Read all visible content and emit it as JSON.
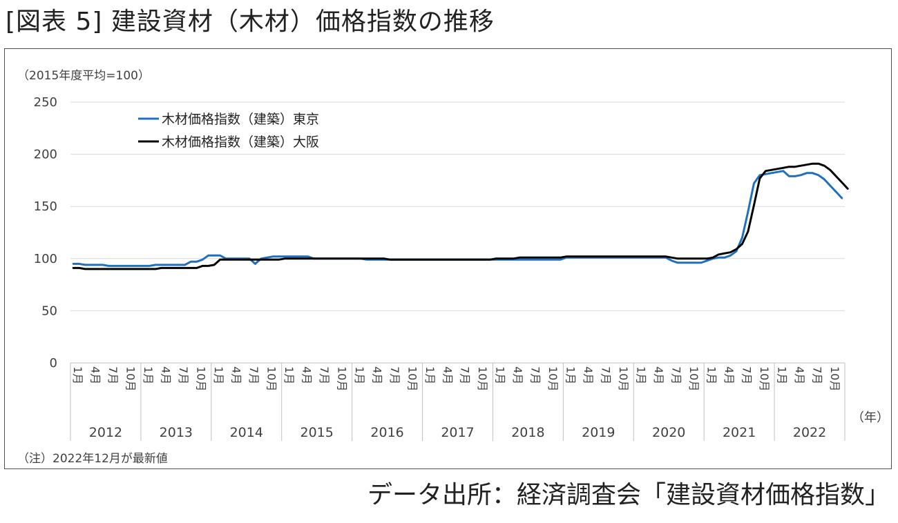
{
  "title": "[図表 5] 建設資材（木材）価格指数の推移",
  "source": "データ出所：経済調査会「建設資材価格指数」",
  "note": "（注）2022年12月が最新値",
  "colors": {
    "tokyo": "#1f6fbf",
    "osaka": "#000000",
    "grid": "#d9d9d9",
    "axis": "#bfbfbf"
  },
  "chart_data": {
    "type": "line",
    "ylabel": "（2015年度平均=100）",
    "xunit": "（年）",
    "ylim": [
      0,
      250
    ],
    "yticks": [
      0,
      50,
      100,
      150,
      200,
      250
    ],
    "month_labels": [
      "1月",
      "4月",
      "7月",
      "10月"
    ],
    "years": [
      "2012",
      "2013",
      "2014",
      "2015",
      "2016",
      "2017",
      "2018",
      "2019",
      "2020",
      "2021",
      "2022"
    ],
    "legend_position": "top-left",
    "series": [
      {
        "name": "木材価格指数（建築）東京",
        "values": [
          95,
          95,
          94,
          94,
          94,
          94,
          93,
          93,
          93,
          93,
          93,
          93,
          93,
          93,
          94,
          94,
          94,
          94,
          94,
          94,
          97,
          97,
          99,
          103,
          103,
          103,
          100,
          100,
          100,
          100,
          100,
          95,
          100,
          101,
          102,
          102,
          102,
          102,
          102,
          102,
          102,
          100,
          100,
          100,
          100,
          100,
          100,
          100,
          100,
          100,
          99,
          99,
          99,
          99,
          99,
          99,
          99,
          99,
          99,
          99,
          99,
          99,
          99,
          99,
          99,
          99,
          99,
          99,
          99,
          99,
          99,
          99,
          99,
          99,
          99,
          99,
          99,
          99,
          99,
          99,
          99,
          99,
          99,
          99,
          101,
          101,
          101,
          101,
          101,
          101,
          101,
          101,
          101,
          101,
          101,
          101,
          101,
          101,
          101,
          101,
          101,
          101,
          98,
          96,
          96,
          96,
          96,
          96,
          98,
          100,
          101,
          101,
          103,
          107,
          120,
          145,
          172,
          180,
          181,
          182,
          183,
          184,
          179,
          179,
          180,
          182,
          182,
          180,
          176,
          170,
          164,
          158
        ]
      },
      {
        "name": "木材価格指数（建築）大阪",
        "values": [
          91,
          91,
          90,
          90,
          90,
          90,
          90,
          90,
          90,
          90,
          90,
          90,
          90,
          90,
          90,
          91,
          91,
          91,
          91,
          91,
          91,
          91,
          93,
          93,
          94,
          99,
          99,
          99,
          99,
          99,
          99,
          99,
          99,
          99,
          99,
          99,
          100,
          100,
          100,
          100,
          100,
          100,
          100,
          100,
          100,
          100,
          100,
          100,
          100,
          100,
          100,
          100,
          100,
          100,
          99,
          99,
          99,
          99,
          99,
          99,
          99,
          99,
          99,
          99,
          99,
          99,
          99,
          99,
          99,
          99,
          99,
          99,
          100,
          100,
          100,
          100,
          101,
          101,
          101,
          101,
          101,
          101,
          101,
          101,
          102,
          102,
          102,
          102,
          102,
          102,
          102,
          102,
          102,
          102,
          102,
          102,
          102,
          102,
          102,
          102,
          102,
          102,
          101,
          100,
          100,
          100,
          100,
          100,
          100,
          101,
          104,
          105,
          106,
          109,
          114,
          126,
          151,
          177,
          184,
          185,
          186,
          187,
          188,
          188,
          189,
          190,
          191,
          191,
          189,
          185,
          179,
          173,
          167
        ]
      }
    ]
  }
}
